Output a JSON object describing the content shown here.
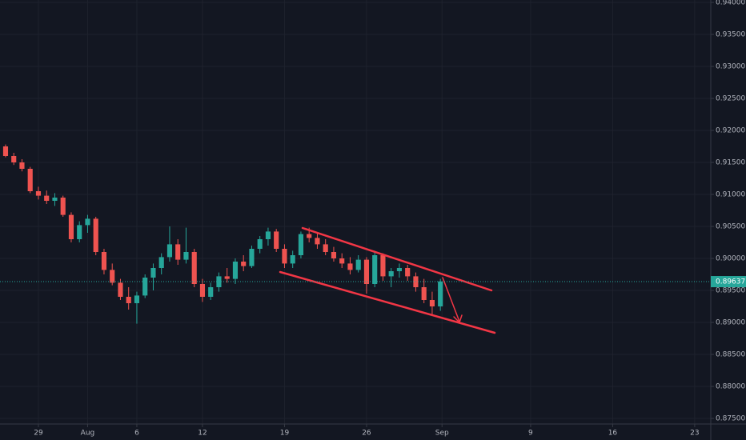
{
  "chart_data": {
    "type": "candlestick",
    "x": [
      -2,
      -1.5,
      -1,
      -0.5,
      0,
      0.5,
      1,
      1.5,
      2,
      2.5,
      3,
      3.5,
      4,
      4.5,
      5,
      5.5,
      6,
      6.5,
      7,
      7.5,
      8,
      8.5,
      9,
      9.5,
      10,
      10.5,
      11,
      11.5,
      12,
      12.5,
      13,
      13.5,
      14,
      14.5,
      15,
      15.5,
      16,
      16.5,
      17,
      17.5,
      18,
      18.5,
      19,
      19.5,
      20,
      20.5,
      21,
      21.5,
      22,
      22.5,
      23,
      23.5,
      24,
      24.5
    ],
    "open": [
      0.9175,
      0.916,
      0.915,
      0.914,
      0.9105,
      0.9098,
      0.909,
      0.9095,
      0.9068,
      0.903,
      0.9052,
      0.9062,
      0.901,
      0.8982,
      0.8962,
      0.894,
      0.893,
      0.8942,
      0.897,
      0.8985,
      0.9002,
      0.9022,
      0.8998,
      0.901,
      0.896,
      0.894,
      0.8955,
      0.8972,
      0.8968,
      0.8995,
      0.8988,
      0.9015,
      0.903,
      0.9042,
      0.9015,
      0.8992,
      0.9005,
      0.9038,
      0.9032,
      0.9022,
      0.901,
      0.9,
      0.8992,
      0.8982,
      0.8998,
      0.896,
      0.9005,
      0.8972,
      0.898,
      0.8985,
      0.8972,
      0.8955,
      0.8935,
      0.8925
    ],
    "high": [
      0.9178,
      0.9165,
      0.9155,
      0.9143,
      0.9112,
      0.9106,
      0.9102,
      0.9098,
      0.9072,
      0.9058,
      0.9068,
      0.9065,
      0.9015,
      0.8992,
      0.8968,
      0.8955,
      0.8948,
      0.8975,
      0.8992,
      0.9008,
      0.905,
      0.903,
      0.9048,
      0.9015,
      0.8968,
      0.8962,
      0.8978,
      0.8985,
      0.9,
      0.9005,
      0.902,
      0.9035,
      0.9048,
      0.9046,
      0.9022,
      0.9012,
      0.9042,
      0.9048,
      0.904,
      0.903,
      0.9018,
      0.9008,
      0.9002,
      0.9005,
      0.9002,
      0.9012,
      0.9008,
      0.8985,
      0.8992,
      0.899,
      0.8978,
      0.8968,
      0.8948,
      0.8968
    ],
    "low": [
      0.9158,
      0.9146,
      0.9136,
      0.9102,
      0.9092,
      0.9085,
      0.9082,
      0.9065,
      0.9025,
      0.9025,
      0.904,
      0.9005,
      0.8975,
      0.8958,
      0.8935,
      0.892,
      0.8898,
      0.8938,
      0.895,
      0.8975,
      0.8995,
      0.899,
      0.8992,
      0.8955,
      0.8932,
      0.8935,
      0.8948,
      0.8962,
      0.896,
      0.898,
      0.8985,
      0.9008,
      0.902,
      0.901,
      0.8985,
      0.8985,
      0.9,
      0.9025,
      0.9015,
      0.9005,
      0.8995,
      0.8985,
      0.8975,
      0.8978,
      0.8945,
      0.8955,
      0.8965,
      0.8955,
      0.897,
      0.8965,
      0.8948,
      0.893,
      0.8912,
      0.8918
    ],
    "close": [
      0.916,
      0.915,
      0.914,
      0.9105,
      0.9098,
      0.909,
      0.9095,
      0.9068,
      0.903,
      0.9052,
      0.9062,
      0.901,
      0.8982,
      0.8962,
      0.894,
      0.893,
      0.8942,
      0.897,
      0.8985,
      0.9002,
      0.9022,
      0.8998,
      0.901,
      0.896,
      0.894,
      0.8955,
      0.8972,
      0.8968,
      0.8995,
      0.8988,
      0.9015,
      0.903,
      0.9042,
      0.9015,
      0.8992,
      0.9005,
      0.9038,
      0.9032,
      0.9022,
      0.901,
      0.9,
      0.8992,
      0.8982,
      0.8998,
      0.896,
      0.9005,
      0.8972,
      0.898,
      0.8985,
      0.8972,
      0.8955,
      0.8935,
      0.8925,
      0.8964
    ],
    "up_color": "#26a69a",
    "down_color": "#ef5350",
    "last_price": 0.89637,
    "xlim": [
      -2.34,
      40.98
    ],
    "xticks": [
      {
        "value": 0,
        "label": "29"
      },
      {
        "value": 3,
        "label": "Aug"
      },
      {
        "value": 6,
        "label": "6"
      },
      {
        "value": 10,
        "label": "12"
      },
      {
        "value": 15,
        "label": "19"
      },
      {
        "value": 20,
        "label": "26"
      },
      {
        "value": 24.6,
        "label": "Sep"
      },
      {
        "value": 30,
        "label": "9"
      },
      {
        "value": 35,
        "label": "16"
      },
      {
        "value": 40,
        "label": "23"
      }
    ],
    "ylim": [
      0.874125,
      0.940375
    ],
    "yticks": [
      {
        "value": 0.94,
        "label": "0.94000"
      },
      {
        "value": 0.935,
        "label": "0.93500"
      },
      {
        "value": 0.93,
        "label": "0.93000"
      },
      {
        "value": 0.925,
        "label": "0.92500"
      },
      {
        "value": 0.92,
        "label": "0.92000"
      },
      {
        "value": 0.915,
        "label": "0.91500"
      },
      {
        "value": 0.91,
        "label": "0.91000"
      },
      {
        "value": 0.905,
        "label": "0.90500"
      },
      {
        "value": 0.9,
        "label": "0.90000"
      },
      {
        "value": 0.895,
        "label": "0.89500"
      },
      {
        "value": 0.89,
        "label": "0.89000"
      },
      {
        "value": 0.885,
        "label": "0.88500"
      },
      {
        "value": 0.88,
        "label": "0.88000"
      },
      {
        "value": 0.875,
        "label": "0.87500"
      }
    ],
    "grid": true
  }
}
